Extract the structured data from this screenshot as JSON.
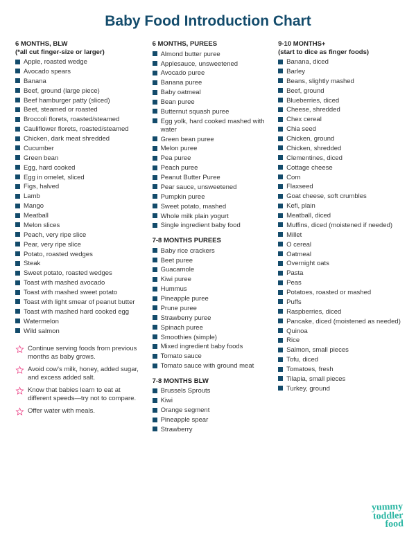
{
  "title": "Baby Food Introduction Chart",
  "colors": {
    "bullet": "#134b6b",
    "title": "#134b6b",
    "text": "#333333",
    "star": "#e9327c",
    "logo": "#2bb6a3",
    "background": "#ffffff"
  },
  "columns": [
    {
      "sections": [
        {
          "heading": "6 MONTHS, BLW",
          "subheading": "(*all cut finger-size or larger)",
          "items": [
            "Apple, roasted wedge",
            "Avocado spears",
            "Banana",
            "Beef, ground (large piece)",
            "Beef hamburger patty (sliced)",
            "Beet, steamed or roasted",
            "Broccoli florets, roasted/steamed",
            "Cauliflower florets, roasted/steamed",
            "Chicken, dark meat shredded",
            "Cucumber",
            "Green bean",
            "Egg, hard cooked",
            "Egg in omelet, sliced",
            "Figs, halved",
            "Lamb",
            "Mango",
            "Meatball",
            "Melon slices",
            "Peach, very ripe slice",
            "Pear, very ripe slice",
            "Potato, roasted wedges",
            "Steak",
            "Sweet potato, roasted wedges",
            "Toast with mashed avocado",
            "Toast with mashed sweet potato",
            "Toast with light smear of peanut butter",
            "Toast with mashed hard cooked egg",
            "Watermelon",
            "Wild salmon"
          ]
        }
      ],
      "tips": [
        "Continue serving foods from previous months as baby grows.",
        "Avoid cow's milk, honey, added sugar, and excess added salt.",
        "Know that babies learn to eat at different speeds—try not to compare.",
        "Offer water with meals."
      ]
    },
    {
      "sections": [
        {
          "heading": "6 MONTHS, PUREES",
          "items": [
            "Almond butter puree",
            "Applesauce, unsweetened",
            "Avocado puree",
            "Banana puree",
            "Baby oatmeal",
            "Bean puree",
            "Butternut squash puree",
            "Egg yolk, hard cooked mashed with water",
            "Green bean puree",
            "Melon puree",
            "Pea puree",
            "Peach puree",
            "Peanut Butter Puree",
            "Pear sauce, unsweetened",
            "Pumpkin puree",
            "Sweet potato, mashed",
            "Whole milk plain yogurt",
            "Single ingredient baby food"
          ]
        },
        {
          "heading": "7-8 MONTHS PUREES",
          "items": [
            "Baby rice crackers",
            "Beet puree",
            "Guacamole",
            "Kiwi puree",
            "Hummus",
            "Pineapple puree",
            "Prune puree",
            "Strawberry puree",
            "Spinach puree",
            "Smoothies (simple)",
            "Mixed ingredient baby foods",
            "Tomato sauce",
            "Tomato sauce with ground meat"
          ]
        },
        {
          "heading": "7-8 MONTHS BLW",
          "items": [
            "Brussels Sprouts",
            "Kiwi",
            "Orange segment",
            "Pineapple spear",
            "Strawberry"
          ]
        }
      ]
    },
    {
      "sections": [
        {
          "heading": "9-10 MONTHS+",
          "subheading": "(start to dice as finger foods)",
          "items": [
            "Banana, diced",
            "Barley",
            "Beans, slightly mashed",
            "Beef, ground",
            "Blueberries, diced",
            "Cheese, shredded",
            "Chex cereal",
            "Chia seed",
            "Chicken, ground",
            "Chicken, shredded",
            "Clementines, diced",
            "Cottage cheese",
            "Corn",
            "Flaxseed",
            "Goat cheese, soft crumbles",
            "Kefi, plain",
            "Meatball, diced",
            "Muffins, diced (moistened if needed)",
            "Millet",
            "O cereal",
            "Oatmeal",
            "Overnight oats",
            "Pasta",
            "Peas",
            "Potatoes, roasted or mashed",
            "Puffs",
            "Raspberries, diced",
            "Pancake, diced (moistened as needed)",
            "Quinoa",
            "Rice",
            "Salmon, small pieces",
            "Tofu, diced",
            "Tomatoes, fresh",
            "Tilapia, small pieces",
            "Turkey, ground"
          ]
        }
      ]
    }
  ],
  "logo": {
    "line1": "yummy",
    "line2": "toddler",
    "line3": "food"
  }
}
